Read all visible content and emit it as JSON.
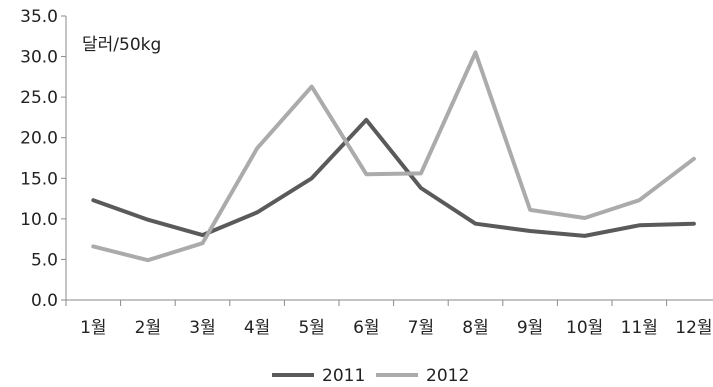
{
  "chart_data": {
    "type": "line",
    "unit_label": "달러/50kg",
    "categories": [
      "1월",
      "2월",
      "3월",
      "4월",
      "5월",
      "6월",
      "7월",
      "8월",
      "9월",
      "10월",
      "11월",
      "12월"
    ],
    "x_positions": [
      1.5,
      2.5,
      3.5,
      4.5,
      5.5,
      6.5,
      7.5,
      8.5,
      9.5,
      10.5,
      11.5,
      12.5
    ],
    "ylim": [
      0,
      35
    ],
    "ytick_values": [
      0,
      5,
      10,
      15,
      20,
      25,
      30,
      35
    ],
    "ytick_labels": [
      "0.0",
      "5.0",
      "10.0",
      "15.0",
      "20.0",
      "25.0",
      "30.0",
      "35.0"
    ],
    "grid": false,
    "legend_position": "bottom",
    "series": [
      {
        "name": "2011",
        "color": "#5a5a5a",
        "values": [
          12.3,
          9.9,
          8.0,
          10.8,
          15.0,
          22.2,
          13.8,
          9.4,
          8.5,
          7.9,
          9.2,
          9.4
        ]
      },
      {
        "name": "2012",
        "color": "#ababab",
        "values": [
          6.6,
          4.9,
          7.0,
          18.7,
          26.3,
          15.5,
          15.6,
          30.5,
          11.1,
          10.1,
          12.3,
          17.4
        ]
      }
    ]
  }
}
